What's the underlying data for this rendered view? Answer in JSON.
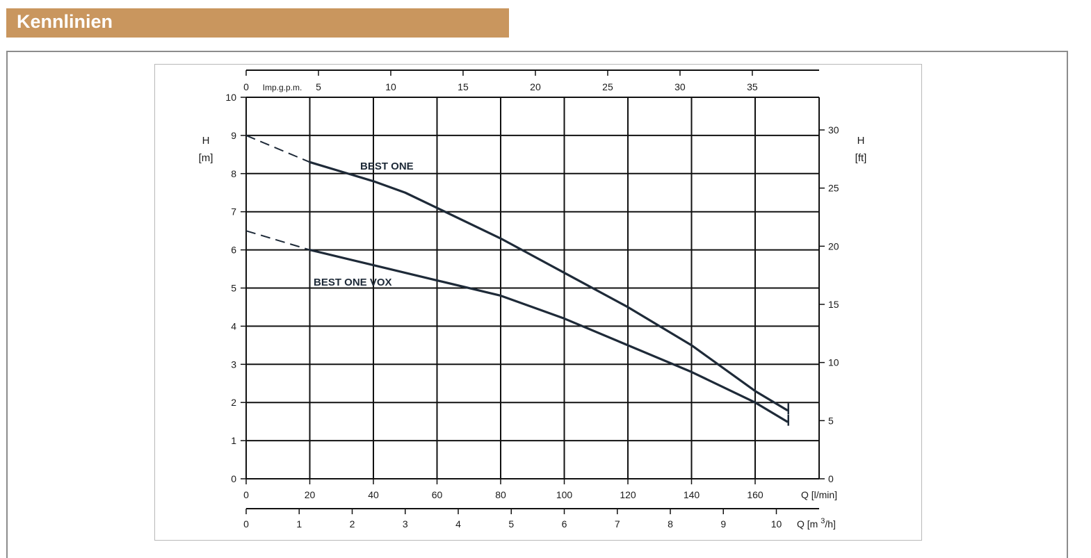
{
  "header": {
    "title": "Kennlinien"
  },
  "chart_data": {
    "type": "line",
    "title": "",
    "x": {
      "label": "Q [l/min]",
      "ticks": [
        0,
        20,
        40,
        60,
        80,
        100,
        120,
        140,
        160
      ],
      "range": [
        0,
        180
      ]
    },
    "x_secondary_bottom": {
      "label": "Q [m",
      "label_sup": "3",
      "label_end": "/h]",
      "ticks": [
        0,
        1,
        2,
        3,
        4,
        5,
        6,
        7,
        8,
        9,
        10
      ]
    },
    "x_secondary_top": {
      "label": "Imp.g.p.m.",
      "ticks": [
        0,
        5,
        10,
        15,
        20,
        25,
        30,
        35
      ]
    },
    "y": {
      "label_line1": "H",
      "label_line2": "[m]",
      "ticks": [
        0,
        1,
        2,
        3,
        4,
        5,
        6,
        7,
        8,
        9,
        10
      ],
      "range": [
        0,
        10
      ]
    },
    "y_secondary": {
      "label_line1": "H",
      "label_line2": "[ft]",
      "ticks": [
        0,
        5,
        10,
        15,
        20,
        25,
        30
      ]
    },
    "grid": true,
    "series": [
      {
        "name": "BEST ONE",
        "dashed_segment": [
          [
            0,
            9.0
          ],
          [
            20,
            8.3
          ]
        ],
        "points": [
          [
            20,
            8.3
          ],
          [
            40,
            7.8
          ],
          [
            50,
            7.5
          ],
          [
            60,
            7.1
          ],
          [
            80,
            6.3
          ],
          [
            100,
            5.4
          ],
          [
            120,
            4.5
          ],
          [
            140,
            3.5
          ],
          [
            160,
            2.3
          ],
          [
            170,
            1.8
          ]
        ]
      },
      {
        "name": "BEST ONE VOX",
        "dashed_segment": [
          [
            0,
            6.5
          ],
          [
            20,
            6.0
          ]
        ],
        "points": [
          [
            20,
            6.0
          ],
          [
            40,
            5.6
          ],
          [
            60,
            5.2
          ],
          [
            80,
            4.8
          ],
          [
            100,
            4.2
          ],
          [
            120,
            3.5
          ],
          [
            140,
            2.8
          ],
          [
            160,
            2.0
          ],
          [
            170,
            1.5
          ]
        ]
      }
    ]
  }
}
